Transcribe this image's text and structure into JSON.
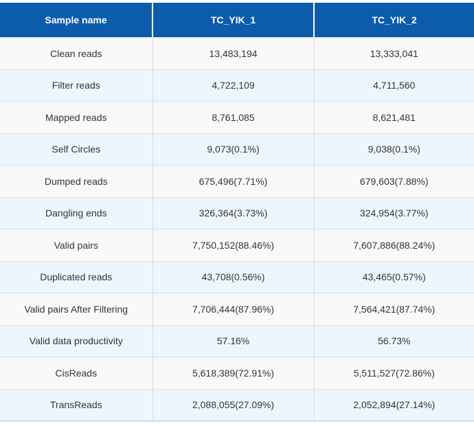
{
  "table": {
    "header": [
      "Sample name",
      "TC_YIK_1",
      "TC_YIK_2"
    ],
    "rows": [
      [
        "Clean reads",
        "13,483,194",
        "13,333,041"
      ],
      [
        "Filter reads",
        "4,722,109",
        "4,711,560"
      ],
      [
        "Mapped reads",
        "8,761,085",
        "8,621,481"
      ],
      [
        "Self Circles",
        "9,073(0.1%)",
        "9,038(0.1%)"
      ],
      [
        "Dumped reads",
        "675,496(7.71%)",
        "679,603(7.88%)"
      ],
      [
        "Dangling ends",
        "326,364(3.73%)",
        "324,954(3.77%)"
      ],
      [
        "Valid pairs",
        "7,750,152(88.46%)",
        "7,607,886(88.24%)"
      ],
      [
        "Duplicated reads",
        "43,708(0.56%)",
        "43,465(0.57%)"
      ],
      [
        "Valid pairs After Filtering",
        "7,706,444(87.96%)",
        "7,564,421(87.74%)"
      ],
      [
        "Valid data productivity",
        "57.16%",
        "56.73%"
      ],
      [
        "CisReads",
        "5,618,389(72.91%)",
        "5,511,527(72.86%)"
      ],
      [
        "TransReads",
        "2,088,055(27.09%)",
        "2,052,894(27.14%)"
      ]
    ]
  }
}
